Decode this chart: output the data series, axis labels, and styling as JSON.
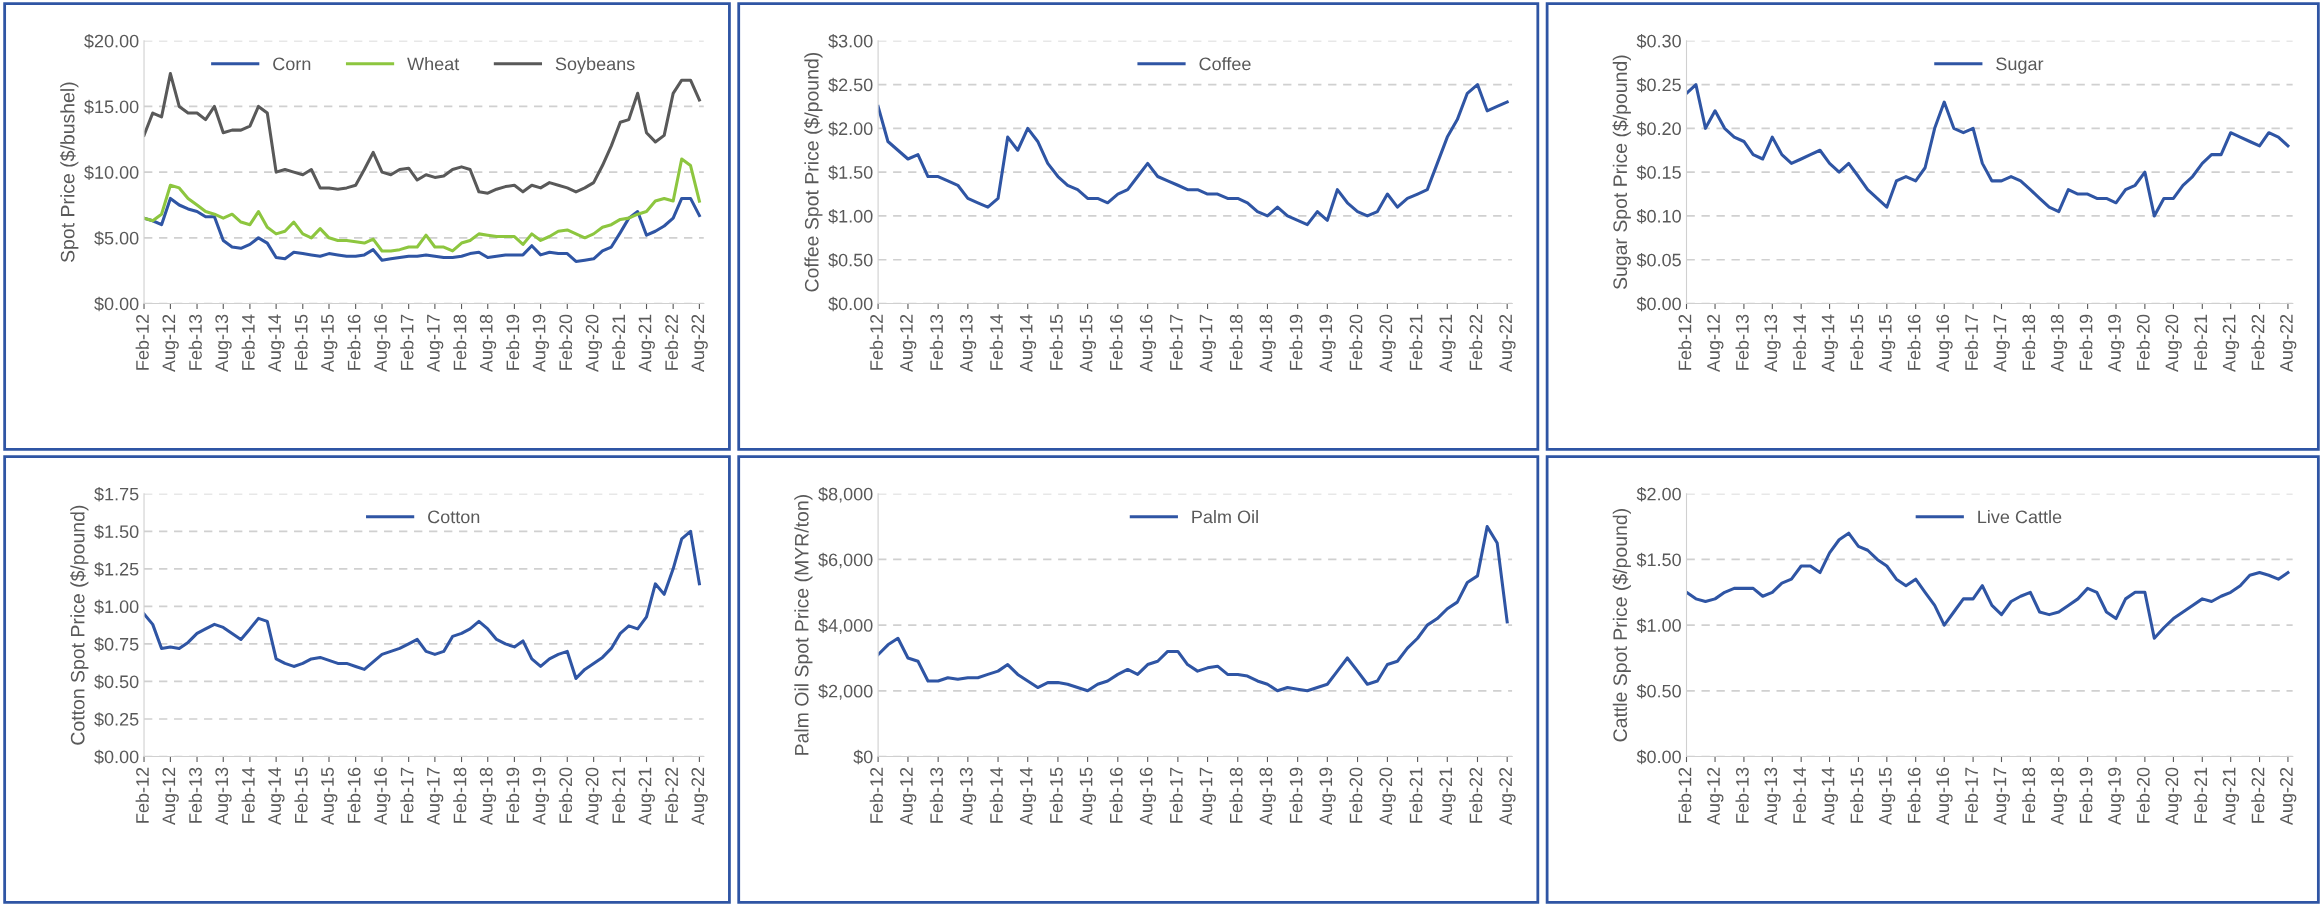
{
  "chart_data": [
    {
      "type": "line",
      "ylabel": "Spot Price ($/bushel)",
      "grid": "y",
      "legend": "top",
      "x": [
        "2012-02",
        "2012-04",
        "2012-06",
        "2012-08",
        "2012-10",
        "2012-12",
        "2013-02",
        "2013-04",
        "2013-06",
        "2013-08",
        "2013-10",
        "2013-12",
        "2014-02",
        "2014-04",
        "2014-06",
        "2014-08",
        "2014-10",
        "2014-12",
        "2015-02",
        "2015-04",
        "2015-06",
        "2015-08",
        "2015-10",
        "2015-12",
        "2016-02",
        "2016-04",
        "2016-06",
        "2016-08",
        "2016-10",
        "2016-12",
        "2017-02",
        "2017-04",
        "2017-06",
        "2017-08",
        "2017-10",
        "2017-12",
        "2018-02",
        "2018-04",
        "2018-06",
        "2018-08",
        "2018-10",
        "2018-12",
        "2019-02",
        "2019-04",
        "2019-06",
        "2019-08",
        "2019-10",
        "2019-12",
        "2020-02",
        "2020-04",
        "2020-06",
        "2020-08",
        "2020-10",
        "2020-12",
        "2021-02",
        "2021-04",
        "2021-06",
        "2021-08",
        "2021-10",
        "2021-12",
        "2022-02",
        "2022-04",
        "2022-06",
        "2022-08"
      ],
      "series": [
        {
          "name": "Corn",
          "color": "#2f55a4",
          "values": [
            6.5,
            6.3,
            6.0,
            8.0,
            7.5,
            7.2,
            7.0,
            6.6,
            6.6,
            4.8,
            4.3,
            4.2,
            4.5,
            5.0,
            4.6,
            3.5,
            3.4,
            3.9,
            3.8,
            3.7,
            3.6,
            3.8,
            3.7,
            3.6,
            3.6,
            3.7,
            4.1,
            3.3,
            3.4,
            3.5,
            3.6,
            3.6,
            3.7,
            3.6,
            3.5,
            3.5,
            3.6,
            3.8,
            3.9,
            3.5,
            3.6,
            3.7,
            3.7,
            3.7,
            4.4,
            3.7,
            3.9,
            3.8,
            3.8,
            3.2,
            3.3,
            3.4,
            4.0,
            4.3,
            5.4,
            6.5,
            7.0,
            5.2,
            5.5,
            5.9,
            6.5,
            8.0,
            8.0,
            6.7
          ]
        },
        {
          "name": "Wheat",
          "color": "#8dc63f",
          "values": [
            6.5,
            6.3,
            6.8,
            9.0,
            8.8,
            8.0,
            7.5,
            7.0,
            6.8,
            6.5,
            6.8,
            6.2,
            6.0,
            7.0,
            5.8,
            5.3,
            5.5,
            6.2,
            5.3,
            5.0,
            5.7,
            5.0,
            4.8,
            4.8,
            4.7,
            4.6,
            4.9,
            4.0,
            4.0,
            4.1,
            4.3,
            4.3,
            5.2,
            4.3,
            4.3,
            4.0,
            4.6,
            4.8,
            5.3,
            5.2,
            5.1,
            5.1,
            5.1,
            4.5,
            5.3,
            4.8,
            5.1,
            5.5,
            5.6,
            5.3,
            5.0,
            5.3,
            5.8,
            6.0,
            6.4,
            6.5,
            6.8,
            7.0,
            7.8,
            8.0,
            7.8,
            11.0,
            10.5,
            7.8
          ]
        },
        {
          "name": "Soybeans",
          "color": "#595959",
          "values": [
            12.8,
            14.5,
            14.2,
            17.5,
            15.0,
            14.5,
            14.5,
            14.0,
            15.0,
            13.0,
            13.2,
            13.2,
            13.5,
            15.0,
            14.5,
            10.0,
            10.2,
            10.0,
            9.8,
            10.2,
            8.8,
            8.8,
            8.7,
            8.8,
            9.0,
            10.2,
            11.5,
            10.0,
            9.8,
            10.2,
            10.3,
            9.4,
            9.8,
            9.6,
            9.7,
            10.2,
            10.4,
            10.2,
            8.5,
            8.4,
            8.7,
            8.9,
            9.0,
            8.5,
            9.0,
            8.8,
            9.2,
            9.0,
            8.8,
            8.5,
            8.8,
            9.2,
            10.5,
            12.0,
            13.8,
            14.0,
            16.0,
            13.0,
            12.3,
            12.8,
            16.0,
            17.0,
            17.0,
            15.5
          ]
        }
      ],
      "ylim": [
        0,
        20
      ],
      "yticks": [
        {
          "value": 0,
          "label": "$0.00"
        },
        {
          "value": 5,
          "label": "$5.00"
        },
        {
          "value": 10,
          "label": "$10.00"
        },
        {
          "value": 15,
          "label": "$15.00"
        },
        {
          "value": 20,
          "label": "$20.00"
        }
      ],
      "xlim": [
        "2012-02",
        "2022-09"
      ],
      "xticks": [
        {
          "value": "2012-02",
          "label": "Feb-12"
        },
        {
          "value": "2012-08",
          "label": "Aug-12"
        },
        {
          "value": "2013-02",
          "label": "Feb-13"
        },
        {
          "value": "2013-08",
          "label": "Aug-13"
        },
        {
          "value": "2014-02",
          "label": "Feb-14"
        },
        {
          "value": "2014-08",
          "label": "Aug-14"
        },
        {
          "value": "2015-02",
          "label": "Feb-15"
        },
        {
          "value": "2015-08",
          "label": "Aug-15"
        },
        {
          "value": "2016-02",
          "label": "Feb-16"
        },
        {
          "value": "2016-08",
          "label": "Aug-16"
        },
        {
          "value": "2017-02",
          "label": "Feb-17"
        },
        {
          "value": "2017-08",
          "label": "Aug-17"
        },
        {
          "value": "2018-02",
          "label": "Feb-18"
        },
        {
          "value": "2018-08",
          "label": "Aug-18"
        },
        {
          "value": "2019-02",
          "label": "Feb-19"
        },
        {
          "value": "2019-08",
          "label": "Aug-19"
        },
        {
          "value": "2020-02",
          "label": "Feb-20"
        },
        {
          "value": "2020-08",
          "label": "Aug-20"
        },
        {
          "value": "2021-02",
          "label": "Feb-21"
        },
        {
          "value": "2021-08",
          "label": "Aug-21"
        },
        {
          "value": "2022-02",
          "label": "Feb-22"
        },
        {
          "value": "2022-08",
          "label": "Aug-22"
        }
      ]
    },
    {
      "type": "line",
      "ylabel": "Coffee Spot Price ($/pound)",
      "grid": "y",
      "legend": "top",
      "x": [
        "2012-02",
        "2012-04",
        "2012-06",
        "2012-08",
        "2012-10",
        "2012-12",
        "2013-02",
        "2013-04",
        "2013-06",
        "2013-08",
        "2013-10",
        "2013-12",
        "2014-02",
        "2014-04",
        "2014-06",
        "2014-08",
        "2014-10",
        "2014-12",
        "2015-02",
        "2015-04",
        "2015-06",
        "2015-08",
        "2015-10",
        "2015-12",
        "2016-02",
        "2016-04",
        "2016-06",
        "2016-08",
        "2016-10",
        "2016-12",
        "2017-02",
        "2017-04",
        "2017-06",
        "2017-08",
        "2017-10",
        "2017-12",
        "2018-02",
        "2018-04",
        "2018-06",
        "2018-08",
        "2018-10",
        "2018-12",
        "2019-02",
        "2019-04",
        "2019-06",
        "2019-08",
        "2019-10",
        "2019-12",
        "2020-02",
        "2020-04",
        "2020-06",
        "2020-08",
        "2020-10",
        "2020-12",
        "2021-02",
        "2021-04",
        "2021-06",
        "2021-08",
        "2021-10",
        "2021-12",
        "2022-02",
        "2022-04",
        "2022-06",
        "2022-08"
      ],
      "series": [
        {
          "name": "Coffee",
          "color": "#2f55a4",
          "values": [
            2.25,
            1.85,
            1.75,
            1.65,
            1.7,
            1.45,
            1.45,
            1.4,
            1.35,
            1.2,
            1.15,
            1.1,
            1.2,
            1.9,
            1.75,
            2.0,
            1.85,
            1.6,
            1.45,
            1.35,
            1.3,
            1.2,
            1.2,
            1.15,
            1.25,
            1.3,
            1.45,
            1.6,
            1.45,
            1.4,
            1.35,
            1.3,
            1.3,
            1.25,
            1.25,
            1.2,
            1.2,
            1.15,
            1.05,
            1.0,
            1.1,
            1.0,
            0.95,
            0.9,
            1.05,
            0.95,
            1.3,
            1.15,
            1.05,
            1.0,
            1.05,
            1.25,
            1.1,
            1.2,
            1.25,
            1.3,
            1.6,
            1.9,
            2.1,
            2.4,
            2.5,
            2.2,
            2.25,
            2.3
          ]
        }
      ],
      "ylim": [
        0,
        3
      ],
      "yticks": [
        {
          "value": 0,
          "label": "$0.00"
        },
        {
          "value": 0.5,
          "label": "$0.50"
        },
        {
          "value": 1,
          "label": "$1.00"
        },
        {
          "value": 1.5,
          "label": "$1.50"
        },
        {
          "value": 2,
          "label": "$2.00"
        },
        {
          "value": 2.5,
          "label": "$2.50"
        },
        {
          "value": 3,
          "label": "$3.00"
        }
      ],
      "xlim": [
        "2012-02",
        "2022-09"
      ],
      "xticks": [
        {
          "value": "2012-02",
          "label": "Feb-12"
        },
        {
          "value": "2012-08",
          "label": "Aug-12"
        },
        {
          "value": "2013-02",
          "label": "Feb-13"
        },
        {
          "value": "2013-08",
          "label": "Aug-13"
        },
        {
          "value": "2014-02",
          "label": "Feb-14"
        },
        {
          "value": "2014-08",
          "label": "Aug-14"
        },
        {
          "value": "2015-02",
          "label": "Feb-15"
        },
        {
          "value": "2015-08",
          "label": "Aug-15"
        },
        {
          "value": "2016-02",
          "label": "Feb-16"
        },
        {
          "value": "2016-08",
          "label": "Aug-16"
        },
        {
          "value": "2017-02",
          "label": "Feb-17"
        },
        {
          "value": "2017-08",
          "label": "Aug-17"
        },
        {
          "value": "2018-02",
          "label": "Feb-18"
        },
        {
          "value": "2018-08",
          "label": "Aug-18"
        },
        {
          "value": "2019-02",
          "label": "Feb-19"
        },
        {
          "value": "2019-08",
          "label": "Aug-19"
        },
        {
          "value": "2020-02",
          "label": "Feb-20"
        },
        {
          "value": "2020-08",
          "label": "Aug-20"
        },
        {
          "value": "2021-02",
          "label": "Feb-21"
        },
        {
          "value": "2021-08",
          "label": "Aug-21"
        },
        {
          "value": "2022-02",
          "label": "Feb-22"
        },
        {
          "value": "2022-08",
          "label": "Aug-22"
        }
      ]
    },
    {
      "type": "line",
      "ylabel": "Sugar Spot Price ($/pound)",
      "grid": "y",
      "legend": "top",
      "x": [
        "2012-02",
        "2012-04",
        "2012-06",
        "2012-08",
        "2012-10",
        "2012-12",
        "2013-02",
        "2013-04",
        "2013-06",
        "2013-08",
        "2013-10",
        "2013-12",
        "2014-02",
        "2014-04",
        "2014-06",
        "2014-08",
        "2014-10",
        "2014-12",
        "2015-02",
        "2015-04",
        "2015-06",
        "2015-08",
        "2015-10",
        "2015-12",
        "2016-02",
        "2016-04",
        "2016-06",
        "2016-08",
        "2016-10",
        "2016-12",
        "2017-02",
        "2017-04",
        "2017-06",
        "2017-08",
        "2017-10",
        "2017-12",
        "2018-02",
        "2018-04",
        "2018-06",
        "2018-08",
        "2018-10",
        "2018-12",
        "2019-02",
        "2019-04",
        "2019-06",
        "2019-08",
        "2019-10",
        "2019-12",
        "2020-02",
        "2020-04",
        "2020-06",
        "2020-08",
        "2020-10",
        "2020-12",
        "2021-02",
        "2021-04",
        "2021-06",
        "2021-08",
        "2021-10",
        "2021-12",
        "2022-02",
        "2022-04",
        "2022-06",
        "2022-08"
      ],
      "series": [
        {
          "name": "Sugar",
          "color": "#2f55a4",
          "values": [
            0.24,
            0.25,
            0.2,
            0.22,
            0.2,
            0.19,
            0.185,
            0.17,
            0.165,
            0.19,
            0.17,
            0.16,
            0.165,
            0.17,
            0.175,
            0.16,
            0.15,
            0.16,
            0.145,
            0.13,
            0.12,
            0.11,
            0.14,
            0.145,
            0.14,
            0.155,
            0.2,
            0.23,
            0.2,
            0.195,
            0.2,
            0.16,
            0.14,
            0.14,
            0.145,
            0.14,
            0.13,
            0.12,
            0.11,
            0.105,
            0.13,
            0.125,
            0.125,
            0.12,
            0.12,
            0.115,
            0.13,
            0.135,
            0.15,
            0.1,
            0.12,
            0.12,
            0.135,
            0.145,
            0.16,
            0.17,
            0.17,
            0.195,
            0.19,
            0.185,
            0.18,
            0.195,
            0.19,
            0.18
          ]
        }
      ],
      "ylim": [
        0,
        0.3
      ],
      "yticks": [
        {
          "value": 0,
          "label": "$0.00"
        },
        {
          "value": 0.05,
          "label": "$0.05"
        },
        {
          "value": 0.1,
          "label": "$0.10"
        },
        {
          "value": 0.15,
          "label": "$0.15"
        },
        {
          "value": 0.2,
          "label": "$0.20"
        },
        {
          "value": 0.25,
          "label": "$0.25"
        },
        {
          "value": 0.3,
          "label": "$0.30"
        }
      ],
      "xlim": [
        "2012-02",
        "2022-09"
      ],
      "xticks": [
        {
          "value": "2012-02",
          "label": "Feb-12"
        },
        {
          "value": "2012-08",
          "label": "Aug-12"
        },
        {
          "value": "2013-02",
          "label": "Feb-13"
        },
        {
          "value": "2013-08",
          "label": "Aug-13"
        },
        {
          "value": "2014-02",
          "label": "Feb-14"
        },
        {
          "value": "2014-08",
          "label": "Aug-14"
        },
        {
          "value": "2015-02",
          "label": "Feb-15"
        },
        {
          "value": "2015-08",
          "label": "Aug-15"
        },
        {
          "value": "2016-02",
          "label": "Feb-16"
        },
        {
          "value": "2016-08",
          "label": "Aug-16"
        },
        {
          "value": "2017-02",
          "label": "Feb-17"
        },
        {
          "value": "2017-08",
          "label": "Aug-17"
        },
        {
          "value": "2018-02",
          "label": "Feb-18"
        },
        {
          "value": "2018-08",
          "label": "Aug-18"
        },
        {
          "value": "2019-02",
          "label": "Feb-19"
        },
        {
          "value": "2019-08",
          "label": "Aug-19"
        },
        {
          "value": "2020-02",
          "label": "Feb-20"
        },
        {
          "value": "2020-08",
          "label": "Aug-20"
        },
        {
          "value": "2021-02",
          "label": "Feb-21"
        },
        {
          "value": "2021-08",
          "label": "Aug-21"
        },
        {
          "value": "2022-02",
          "label": "Feb-22"
        },
        {
          "value": "2022-08",
          "label": "Aug-22"
        }
      ]
    },
    {
      "type": "line",
      "ylabel": "Cotton Spot Price ($/pound)",
      "grid": "y",
      "legend": "top",
      "x": [
        "2012-02",
        "2012-04",
        "2012-06",
        "2012-08",
        "2012-10",
        "2012-12",
        "2013-02",
        "2013-04",
        "2013-06",
        "2013-08",
        "2013-10",
        "2013-12",
        "2014-02",
        "2014-04",
        "2014-06",
        "2014-08",
        "2014-10",
        "2014-12",
        "2015-02",
        "2015-04",
        "2015-06",
        "2015-08",
        "2015-10",
        "2015-12",
        "2016-02",
        "2016-04",
        "2016-06",
        "2016-08",
        "2016-10",
        "2016-12",
        "2017-02",
        "2017-04",
        "2017-06",
        "2017-08",
        "2017-10",
        "2017-12",
        "2018-02",
        "2018-04",
        "2018-06",
        "2018-08",
        "2018-10",
        "2018-12",
        "2019-02",
        "2019-04",
        "2019-06",
        "2019-08",
        "2019-10",
        "2019-12",
        "2020-02",
        "2020-04",
        "2020-06",
        "2020-08",
        "2020-10",
        "2020-12",
        "2021-02",
        "2021-04",
        "2021-06",
        "2021-08",
        "2021-10",
        "2021-12",
        "2022-02",
        "2022-04",
        "2022-06",
        "2022-08"
      ],
      "series": [
        {
          "name": "Cotton",
          "color": "#2f55a4",
          "values": [
            0.95,
            0.88,
            0.72,
            0.73,
            0.72,
            0.76,
            0.82,
            0.85,
            0.88,
            0.86,
            0.82,
            0.78,
            0.85,
            0.92,
            0.9,
            0.65,
            0.62,
            0.6,
            0.62,
            0.65,
            0.66,
            0.64,
            0.62,
            0.62,
            0.6,
            0.58,
            0.63,
            0.68,
            0.7,
            0.72,
            0.75,
            0.78,
            0.7,
            0.68,
            0.7,
            0.8,
            0.82,
            0.85,
            0.9,
            0.85,
            0.78,
            0.75,
            0.73,
            0.77,
            0.65,
            0.6,
            0.65,
            0.68,
            0.7,
            0.52,
            0.58,
            0.62,
            0.66,
            0.72,
            0.82,
            0.87,
            0.85,
            0.93,
            1.15,
            1.08,
            1.25,
            1.45,
            1.5,
            1.15
          ]
        }
      ],
      "ylim": [
        0,
        1.75
      ],
      "yticks": [
        {
          "value": 0,
          "label": "$0.00"
        },
        {
          "value": 0.25,
          "label": "$0.25"
        },
        {
          "value": 0.5,
          "label": "$0.50"
        },
        {
          "value": 0.75,
          "label": "$0.75"
        },
        {
          "value": 1,
          "label": "$1.00"
        },
        {
          "value": 1.25,
          "label": "$1.25"
        },
        {
          "value": 1.5,
          "label": "$1.50"
        },
        {
          "value": 1.75,
          "label": "$1.75"
        }
      ],
      "xlim": [
        "2012-02",
        "2022-09"
      ],
      "xticks": [
        {
          "value": "2012-02",
          "label": "Feb-12"
        },
        {
          "value": "2012-08",
          "label": "Aug-12"
        },
        {
          "value": "2013-02",
          "label": "Feb-13"
        },
        {
          "value": "2013-08",
          "label": "Aug-13"
        },
        {
          "value": "2014-02",
          "label": "Feb-14"
        },
        {
          "value": "2014-08",
          "label": "Aug-14"
        },
        {
          "value": "2015-02",
          "label": "Feb-15"
        },
        {
          "value": "2015-08",
          "label": "Aug-15"
        },
        {
          "value": "2016-02",
          "label": "Feb-16"
        },
        {
          "value": "2016-08",
          "label": "Aug-16"
        },
        {
          "value": "2017-02",
          "label": "Feb-17"
        },
        {
          "value": "2017-08",
          "label": "Aug-17"
        },
        {
          "value": "2018-02",
          "label": "Feb-18"
        },
        {
          "value": "2018-08",
          "label": "Aug-18"
        },
        {
          "value": "2019-02",
          "label": "Feb-19"
        },
        {
          "value": "2019-08",
          "label": "Aug-19"
        },
        {
          "value": "2020-02",
          "label": "Feb-20"
        },
        {
          "value": "2020-08",
          "label": "Aug-20"
        },
        {
          "value": "2021-02",
          "label": "Feb-21"
        },
        {
          "value": "2021-08",
          "label": "Aug-21"
        },
        {
          "value": "2022-02",
          "label": "Feb-22"
        },
        {
          "value": "2022-08",
          "label": "Aug-22"
        }
      ]
    },
    {
      "type": "line",
      "ylabel": "Palm Oil Spot Price (MYR/ton)",
      "grid": "y",
      "legend": "top",
      "x": [
        "2012-02",
        "2012-04",
        "2012-06",
        "2012-08",
        "2012-10",
        "2012-12",
        "2013-02",
        "2013-04",
        "2013-06",
        "2013-08",
        "2013-10",
        "2013-12",
        "2014-02",
        "2014-04",
        "2014-06",
        "2014-08",
        "2014-10",
        "2014-12",
        "2015-02",
        "2015-04",
        "2015-06",
        "2015-08",
        "2015-10",
        "2015-12",
        "2016-02",
        "2016-04",
        "2016-06",
        "2016-08",
        "2016-10",
        "2016-12",
        "2017-02",
        "2017-04",
        "2017-06",
        "2017-08",
        "2017-10",
        "2017-12",
        "2018-02",
        "2018-04",
        "2018-06",
        "2018-08",
        "2018-10",
        "2018-12",
        "2019-02",
        "2019-04",
        "2019-06",
        "2019-08",
        "2019-10",
        "2019-12",
        "2020-02",
        "2020-04",
        "2020-06",
        "2020-08",
        "2020-10",
        "2020-12",
        "2021-02",
        "2021-04",
        "2021-06",
        "2021-08",
        "2021-10",
        "2021-12",
        "2022-02",
        "2022-04",
        "2022-06",
        "2022-08"
      ],
      "series": [
        {
          "name": "Palm Oil",
          "color": "#2f55a4",
          "values": [
            3100,
            3400,
            3600,
            3000,
            2900,
            2300,
            2300,
            2400,
            2350,
            2400,
            2400,
            2500,
            2600,
            2800,
            2500,
            2300,
            2100,
            2250,
            2250,
            2200,
            2100,
            2000,
            2200,
            2300,
            2500,
            2650,
            2500,
            2800,
            2900,
            3200,
            3200,
            2800,
            2600,
            2700,
            2750,
            2500,
            2500,
            2450,
            2300,
            2200,
            2000,
            2100,
            2050,
            2000,
            2100,
            2200,
            2600,
            3000,
            2600,
            2200,
            2300,
            2800,
            2900,
            3300,
            3600,
            4000,
            4200,
            4500,
            4700,
            5300,
            5500,
            7000,
            6500,
            4100
          ]
        }
      ],
      "ylim": [
        0,
        8000
      ],
      "yticks": [
        {
          "value": 0,
          "label": "$0"
        },
        {
          "value": 2000,
          "label": "$2,000"
        },
        {
          "value": 4000,
          "label": "$4,000"
        },
        {
          "value": 6000,
          "label": "$6,000"
        },
        {
          "value": 8000,
          "label": "$8,000"
        }
      ],
      "xlim": [
        "2012-02",
        "2022-09"
      ],
      "xticks": [
        {
          "value": "2012-02",
          "label": "Feb-12"
        },
        {
          "value": "2012-08",
          "label": "Aug-12"
        },
        {
          "value": "2013-02",
          "label": "Feb-13"
        },
        {
          "value": "2013-08",
          "label": "Aug-13"
        },
        {
          "value": "2014-02",
          "label": "Feb-14"
        },
        {
          "value": "2014-08",
          "label": "Aug-14"
        },
        {
          "value": "2015-02",
          "label": "Feb-15"
        },
        {
          "value": "2015-08",
          "label": "Aug-15"
        },
        {
          "value": "2016-02",
          "label": "Feb-16"
        },
        {
          "value": "2016-08",
          "label": "Aug-16"
        },
        {
          "value": "2017-02",
          "label": "Feb-17"
        },
        {
          "value": "2017-08",
          "label": "Aug-17"
        },
        {
          "value": "2018-02",
          "label": "Feb-18"
        },
        {
          "value": "2018-08",
          "label": "Aug-18"
        },
        {
          "value": "2019-02",
          "label": "Feb-19"
        },
        {
          "value": "2019-08",
          "label": "Aug-19"
        },
        {
          "value": "2020-02",
          "label": "Feb-20"
        },
        {
          "value": "2020-08",
          "label": "Aug-20"
        },
        {
          "value": "2021-02",
          "label": "Feb-21"
        },
        {
          "value": "2021-08",
          "label": "Aug-21"
        },
        {
          "value": "2022-02",
          "label": "Feb-22"
        },
        {
          "value": "2022-08",
          "label": "Aug-22"
        }
      ]
    },
    {
      "type": "line",
      "ylabel": "Cattle Spot Price ($/pound)",
      "grid": "y",
      "legend": "top",
      "x": [
        "2012-02",
        "2012-04",
        "2012-06",
        "2012-08",
        "2012-10",
        "2012-12",
        "2013-02",
        "2013-04",
        "2013-06",
        "2013-08",
        "2013-10",
        "2013-12",
        "2014-02",
        "2014-04",
        "2014-06",
        "2014-08",
        "2014-10",
        "2014-12",
        "2015-02",
        "2015-04",
        "2015-06",
        "2015-08",
        "2015-10",
        "2015-12",
        "2016-02",
        "2016-04",
        "2016-06",
        "2016-08",
        "2016-10",
        "2016-12",
        "2017-02",
        "2017-04",
        "2017-06",
        "2017-08",
        "2017-10",
        "2017-12",
        "2018-02",
        "2018-04",
        "2018-06",
        "2018-08",
        "2018-10",
        "2018-12",
        "2019-02",
        "2019-04",
        "2019-06",
        "2019-08",
        "2019-10",
        "2019-12",
        "2020-02",
        "2020-04",
        "2020-06",
        "2020-08",
        "2020-10",
        "2020-12",
        "2021-02",
        "2021-04",
        "2021-06",
        "2021-08",
        "2021-10",
        "2021-12",
        "2022-02",
        "2022-04",
        "2022-06",
        "2022-08"
      ],
      "series": [
        {
          "name": "Live Cattle",
          "color": "#2f55a4",
          "values": [
            1.25,
            1.2,
            1.18,
            1.2,
            1.25,
            1.28,
            1.28,
            1.28,
            1.22,
            1.25,
            1.32,
            1.35,
            1.45,
            1.45,
            1.4,
            1.55,
            1.65,
            1.7,
            1.6,
            1.57,
            1.5,
            1.45,
            1.35,
            1.3,
            1.35,
            1.25,
            1.15,
            1.0,
            1.1,
            1.2,
            1.2,
            1.3,
            1.15,
            1.08,
            1.18,
            1.22,
            1.25,
            1.1,
            1.08,
            1.1,
            1.15,
            1.2,
            1.28,
            1.25,
            1.1,
            1.05,
            1.2,
            1.25,
            1.25,
            0.9,
            0.98,
            1.05,
            1.1,
            1.15,
            1.2,
            1.18,
            1.22,
            1.25,
            1.3,
            1.38,
            1.4,
            1.38,
            1.35,
            1.4
          ]
        }
      ],
      "ylim": [
        0,
        2
      ],
      "yticks": [
        {
          "value": 0,
          "label": "$0.00"
        },
        {
          "value": 0.5,
          "label": "$0.50"
        },
        {
          "value": 1,
          "label": "$1.00"
        },
        {
          "value": 1.5,
          "label": "$1.50"
        },
        {
          "value": 2,
          "label": "$2.00"
        }
      ],
      "xlim": [
        "2012-02",
        "2022-09"
      ],
      "xticks": [
        {
          "value": "2012-02",
          "label": "Feb-12"
        },
        {
          "value": "2012-08",
          "label": "Aug-12"
        },
        {
          "value": "2013-02",
          "label": "Feb-13"
        },
        {
          "value": "2013-08",
          "label": "Aug-13"
        },
        {
          "value": "2014-02",
          "label": "Feb-14"
        },
        {
          "value": "2014-08",
          "label": "Aug-14"
        },
        {
          "value": "2015-02",
          "label": "Feb-15"
        },
        {
          "value": "2015-08",
          "label": "Aug-15"
        },
        {
          "value": "2016-02",
          "label": "Feb-16"
        },
        {
          "value": "2016-08",
          "label": "Aug-16"
        },
        {
          "value": "2017-02",
          "label": "Feb-17"
        },
        {
          "value": "2017-08",
          "label": "Aug-17"
        },
        {
          "value": "2018-02",
          "label": "Feb-18"
        },
        {
          "value": "2018-08",
          "label": "Aug-18"
        },
        {
          "value": "2019-02",
          "label": "Feb-19"
        },
        {
          "value": "2019-08",
          "label": "Aug-19"
        },
        {
          "value": "2020-02",
          "label": "Feb-20"
        },
        {
          "value": "2020-08",
          "label": "Aug-20"
        },
        {
          "value": "2021-02",
          "label": "Feb-21"
        },
        {
          "value": "2021-08",
          "label": "Aug-21"
        },
        {
          "value": "2022-02",
          "label": "Feb-22"
        },
        {
          "value": "2022-08",
          "label": "Aug-22"
        }
      ]
    }
  ]
}
